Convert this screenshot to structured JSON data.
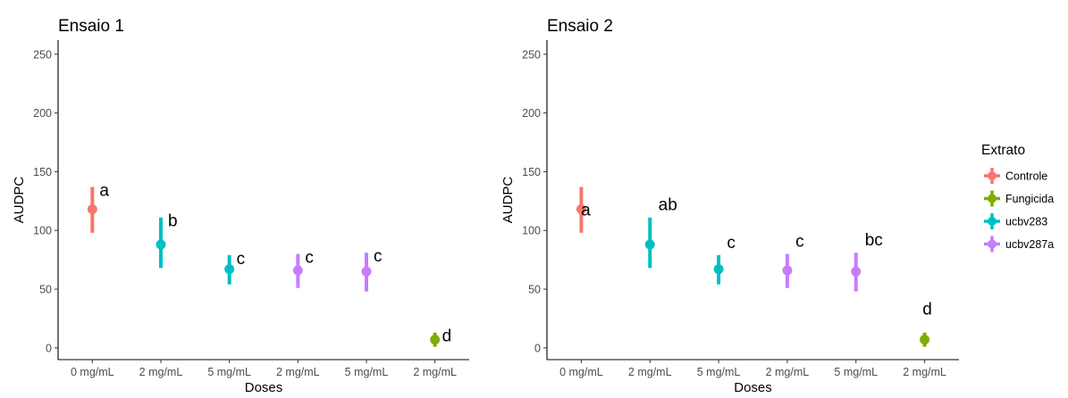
{
  "chart_data": [
    {
      "type": "pointrange",
      "title": "Ensaio 1",
      "xlabel": "Doses",
      "ylabel": "AUDPC",
      "ylim": [
        -10,
        262
      ],
      "yticks": [
        0,
        50,
        100,
        150,
        200,
        250
      ],
      "categories": [
        "0 mg/mL",
        "2 mg/mL",
        "5 mg/mL",
        "2 mg/mL",
        "5 mg/mL",
        "2 mg/mL"
      ],
      "points": [
        {
          "series": "Controle",
          "mean": 118,
          "low": 98,
          "high": 137,
          "label": "a"
        },
        {
          "series": "ucbv283",
          "mean": 88,
          "low": 68,
          "high": 111,
          "label": "b"
        },
        {
          "series": "ucbv283",
          "mean": 67,
          "low": 54,
          "high": 79,
          "label": "c"
        },
        {
          "series": "ucbv287a",
          "mean": 66,
          "low": 51,
          "high": 80,
          "label": "c"
        },
        {
          "series": "ucbv287a",
          "mean": 65,
          "low": 48,
          "high": 81,
          "label": "c"
        },
        {
          "series": "Fungicida",
          "mean": 7,
          "low": 1,
          "high": 13,
          "label": "d"
        }
      ]
    },
    {
      "type": "pointrange",
      "title": "Ensaio 2",
      "xlabel": "Doses",
      "ylabel": "AUDPC",
      "ylim": [
        -10,
        262
      ],
      "yticks": [
        0,
        50,
        100,
        150,
        200,
        250
      ],
      "categories": [
        "0 mg/mL",
        "2 mg/mL",
        "5 mg/mL",
        "2 mg/mL",
        "5 mg/mL",
        "2 mg/mL"
      ],
      "points": [
        {
          "series": "Controle",
          "mean": 118,
          "low": 98,
          "high": 137,
          "label": "a"
        },
        {
          "series": "ucbv283",
          "mean": 88,
          "low": 68,
          "high": 111,
          "label": "ab"
        },
        {
          "series": "ucbv283",
          "mean": 67,
          "low": 54,
          "high": 79,
          "label": "c"
        },
        {
          "series": "ucbv287a",
          "mean": 66,
          "low": 51,
          "high": 80,
          "label": "c"
        },
        {
          "series": "ucbv287a",
          "mean": 65,
          "low": 48,
          "high": 81,
          "label": "bc"
        },
        {
          "series": "Fungicida",
          "mean": 7,
          "low": 1,
          "high": 13,
          "label": "d"
        }
      ]
    }
  ],
  "legend": {
    "title": "Extrato",
    "placement": "right",
    "items": [
      {
        "name": "Controle",
        "color": "#F8766D"
      },
      {
        "name": "Fungicida",
        "color": "#7CAE00"
      },
      {
        "name": "ucbv283",
        "color": "#00BFC4"
      },
      {
        "name": "ucbv287a",
        "color": "#C77CFF"
      }
    ]
  }
}
